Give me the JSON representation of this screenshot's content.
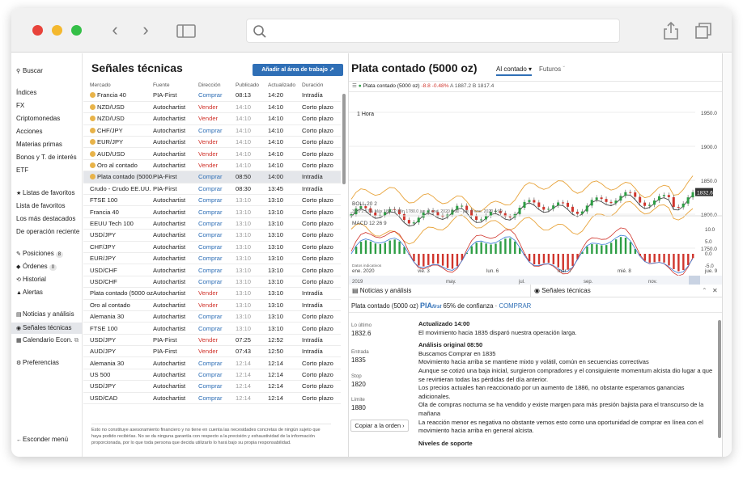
{
  "sidebar": {
    "search": "Buscar",
    "items": [
      "Índices",
      "FX",
      "Criptomonedas",
      "Acciones",
      "Materias primas",
      "Bonos y T. de interés",
      "ETF"
    ],
    "watchlists": "Listas de favoritos",
    "watchlist_items": [
      "Lista de favoritos",
      "Los más destacados",
      "De operación reciente"
    ],
    "positions": "Posiciones",
    "positions_count": "8",
    "orders": "Órdenes",
    "orders_count": "0",
    "history": "Historial",
    "alerts": "Alertas",
    "news": "Noticias y análisis",
    "signals": "Señales técnicas",
    "calendar": "Calendario Econ.",
    "preferences": "Preferencias",
    "hide_menu": "Esconder menú"
  },
  "signals": {
    "title": "Señales técnicas",
    "add_button": "Añadir al área de trabajo",
    "columns": [
      "Mercado",
      "Fuente",
      "Dirección",
      "Publicado",
      "Actualizado",
      "Duración"
    ],
    "rows": [
      {
        "market": "Francia 40",
        "coin": true,
        "source": "PIA-First",
        "dir": "Comprar",
        "pub": "08:13",
        "upd": "14:20",
        "dur": "Intradía",
        "pg": false
      },
      {
        "market": "NZD/USD",
        "coin": true,
        "source": "Autochartist",
        "dir": "Vender",
        "pub": "14:10",
        "upd": "14:10",
        "dur": "Corto plazo",
        "pg": true
      },
      {
        "market": "NZD/USD",
        "coin": true,
        "source": "Autochartist",
        "dir": "Vender",
        "pub": "14:10",
        "upd": "14:10",
        "dur": "Corto plazo",
        "pg": true
      },
      {
        "market": "CHF/JPY",
        "coin": true,
        "source": "Autochartist",
        "dir": "Comprar",
        "pub": "14:10",
        "upd": "14:10",
        "dur": "Corto plazo",
        "pg": true
      },
      {
        "market": "EUR/JPY",
        "coin": true,
        "source": "Autochartist",
        "dir": "Vender",
        "pub": "14:10",
        "upd": "14:10",
        "dur": "Corto plazo",
        "pg": true
      },
      {
        "market": "AUD/USD",
        "coin": true,
        "source": "Autochartist",
        "dir": "Vender",
        "pub": "14:10",
        "upd": "14:10",
        "dur": "Corto plazo",
        "pg": true
      },
      {
        "market": "Oro al contado",
        "coin": true,
        "source": "Autochartist",
        "dir": "Vender",
        "pub": "14:10",
        "upd": "14:10",
        "dur": "Corto plazo",
        "pg": true
      },
      {
        "market": "Plata contado (5000...",
        "coin": true,
        "source": "PIA-First",
        "dir": "Comprar",
        "pub": "08:50",
        "upd": "14:00",
        "dur": "Intradía",
        "pg": false,
        "sel": true
      },
      {
        "market": "Crudo - Crudo EE.UU.",
        "coin": false,
        "source": "PIA-First",
        "dir": "Comprar",
        "pub": "08:30",
        "upd": "13:45",
        "dur": "Intradía",
        "pg": false
      },
      {
        "market": "FTSE 100",
        "coin": false,
        "source": "Autochartist",
        "dir": "Comprar",
        "pub": "13:10",
        "upd": "13:10",
        "dur": "Corto plazo",
        "pg": true
      },
      {
        "market": "Francia 40",
        "coin": false,
        "source": "Autochartist",
        "dir": "Comprar",
        "pub": "13:10",
        "upd": "13:10",
        "dur": "Corto plazo",
        "pg": true
      },
      {
        "market": "EEUU Tech 100",
        "coin": false,
        "source": "Autochartist",
        "dir": "Comprar",
        "pub": "13:10",
        "upd": "13:10",
        "dur": "Corto plazo",
        "pg": true
      },
      {
        "market": "USD/JPY",
        "coin": false,
        "source": "Autochartist",
        "dir": "Comprar",
        "pub": "13:10",
        "upd": "13:10",
        "dur": "Corto plazo",
        "pg": true
      },
      {
        "market": "CHF/JPY",
        "coin": false,
        "source": "Autochartist",
        "dir": "Comprar",
        "pub": "13:10",
        "upd": "13:10",
        "dur": "Corto plazo",
        "pg": true
      },
      {
        "market": "EUR/JPY",
        "coin": false,
        "source": "Autochartist",
        "dir": "Comprar",
        "pub": "13:10",
        "upd": "13:10",
        "dur": "Corto plazo",
        "pg": true
      },
      {
        "market": "USD/CHF",
        "coin": false,
        "source": "Autochartist",
        "dir": "Comprar",
        "pub": "13:10",
        "upd": "13:10",
        "dur": "Corto plazo",
        "pg": true
      },
      {
        "market": "USD/CHF",
        "coin": false,
        "source": "Autochartist",
        "dir": "Comprar",
        "pub": "13:10",
        "upd": "13:10",
        "dur": "Corto plazo",
        "pg": true
      },
      {
        "market": "Plata contado (5000 oz)",
        "coin": false,
        "source": "Autochartist",
        "dir": "Vender",
        "pub": "13:10",
        "upd": "13:10",
        "dur": "Intradía",
        "pg": true
      },
      {
        "market": "Oro al contado",
        "coin": false,
        "source": "Autochartist",
        "dir": "Vender",
        "pub": "13:10",
        "upd": "13:10",
        "dur": "Intradía",
        "pg": true
      },
      {
        "market": "Alemania 30",
        "coin": false,
        "source": "Autochartist",
        "dir": "Comprar",
        "pub": "13:10",
        "upd": "13:10",
        "dur": "Corto plazo",
        "pg": true
      },
      {
        "market": "FTSE 100",
        "coin": false,
        "source": "Autochartist",
        "dir": "Comprar",
        "pub": "13:10",
        "upd": "13:10",
        "dur": "Corto plazo",
        "pg": true
      },
      {
        "market": "USD/JPY",
        "coin": false,
        "source": "PIA-First",
        "dir": "Vender",
        "pub": "07:25",
        "upd": "12:52",
        "dur": "Intradía",
        "pg": false
      },
      {
        "market": "AUD/JPY",
        "coin": false,
        "source": "PIA-First",
        "dir": "Vender",
        "pub": "07:43",
        "upd": "12:50",
        "dur": "Intradía",
        "pg": false
      },
      {
        "market": "Alemania 30",
        "coin": false,
        "source": "Autochartist",
        "dir": "Comprar",
        "pub": "12:14",
        "upd": "12:14",
        "dur": "Corto plazo",
        "pg": true
      },
      {
        "market": "US 500",
        "coin": false,
        "source": "Autochartist",
        "dir": "Comprar",
        "pub": "12:14",
        "upd": "12:14",
        "dur": "Corto plazo",
        "pg": true
      },
      {
        "market": "USD/JPY",
        "coin": false,
        "source": "Autochartist",
        "dir": "Comprar",
        "pub": "12:14",
        "upd": "12:14",
        "dur": "Corto plazo",
        "pg": true
      },
      {
        "market": "USD/CAD",
        "coin": false,
        "source": "Autochartist",
        "dir": "Comprar",
        "pub": "12:14",
        "upd": "12:14",
        "dur": "Corto plazo",
        "pg": true
      }
    ],
    "disclaimer": "Esto no constituye asesoramiento financiero y no tiene en cuenta las necesidades concretas de ningún sujeto que haya podido recibirlas. No se da ninguna garantía con respecto a la precisión y exhaustividad de la información proporcionada, por lo que toda persona que decida utilizarlo lo hará bajo su propia responsabilidad."
  },
  "detail": {
    "title": "Plata contado (5000 oz)",
    "tab_spot": "Al contado",
    "tab_futures": "Futuros",
    "toolbar_name": "Plata contado (5000 oz)",
    "toolbar_change": "-8.8",
    "toolbar_pct": "-0.48%",
    "toolbar_ohlc": "A 1887.2 B 1817.4",
    "timeframe": "1 Hora",
    "price_axis": [
      "1950.0",
      "1900.0",
      "1850.0",
      "1800.0",
      "1750.0"
    ],
    "last_price": "1832.6",
    "boll_label": "BOLL  20  2",
    "boll_values": "39.0   2.17%   Máx 1887.2   Mín 1780.0   jue. 2 ene. 2020 0:00 - jue. 9 ene. 2020 4:00",
    "macd_label": "MACD  12  26  9",
    "macd_axis": [
      "10.0",
      "5.0",
      "0.0",
      "-5.0"
    ],
    "indicators_label": "Datos indicativos",
    "time_axis": [
      "ene. 2020",
      "vie. 3",
      "lun. 6",
      "mar. 7",
      "mié. 8",
      "jue. 9"
    ],
    "nav_axis": [
      "2019",
      "may.",
      "jul.",
      "sep.",
      "nov."
    ],
    "panel_news": "Noticias y análisis",
    "panel_signals": "Señales técnicas",
    "pia_logo": "PIA",
    "pia_logo_suffix": "first",
    "confidence": "65% de confianza",
    "buy_link": "COMPRAR",
    "kv": [
      {
        "k": "Lo último",
        "v": "1832.6"
      },
      {
        "k": "Entrada",
        "v": "1835"
      },
      {
        "k": "Stop",
        "v": "1820"
      },
      {
        "k": "Límite",
        "v": "1880"
      }
    ],
    "copy_order": "Copiar a la orden",
    "analysis": {
      "updated_head": "Actualizado 14:00",
      "updated_text": "El movimiento hacia 1835 disparó nuestra operación larga.",
      "original_head": "Análisis original 08:50",
      "lines": [
        "Buscamos Comprar en 1835",
        "Movimiento hacia arriba se mantiene mixto y volátil, común en secuencias correctivas",
        "Aunque se cotizó una baja inicial, surgieron compradores y el consiguiente momentum alcista dio lugar a que se revirtieran todas las pérdidas del día anterior.",
        "Los precios actuales han reaccionado por un aumento de 1886, no obstante esperamos ganancias adicionales.",
        "Ola de compras nocturna se ha vendido y existe margen para más presión bajista para el transcurso de la mañana",
        "La reacción menor es negativa no obstante vemos esto como una oportunidad de comprar en línea con el movimiento hacia arriba en general alcista."
      ],
      "support_head": "Niveles de soporte"
    }
  },
  "colors": {
    "accent": "#2f6fb6",
    "sell": "#d0342c",
    "up": "#2e9e45",
    "down": "#d0342c",
    "boll": "#e8a33a"
  }
}
